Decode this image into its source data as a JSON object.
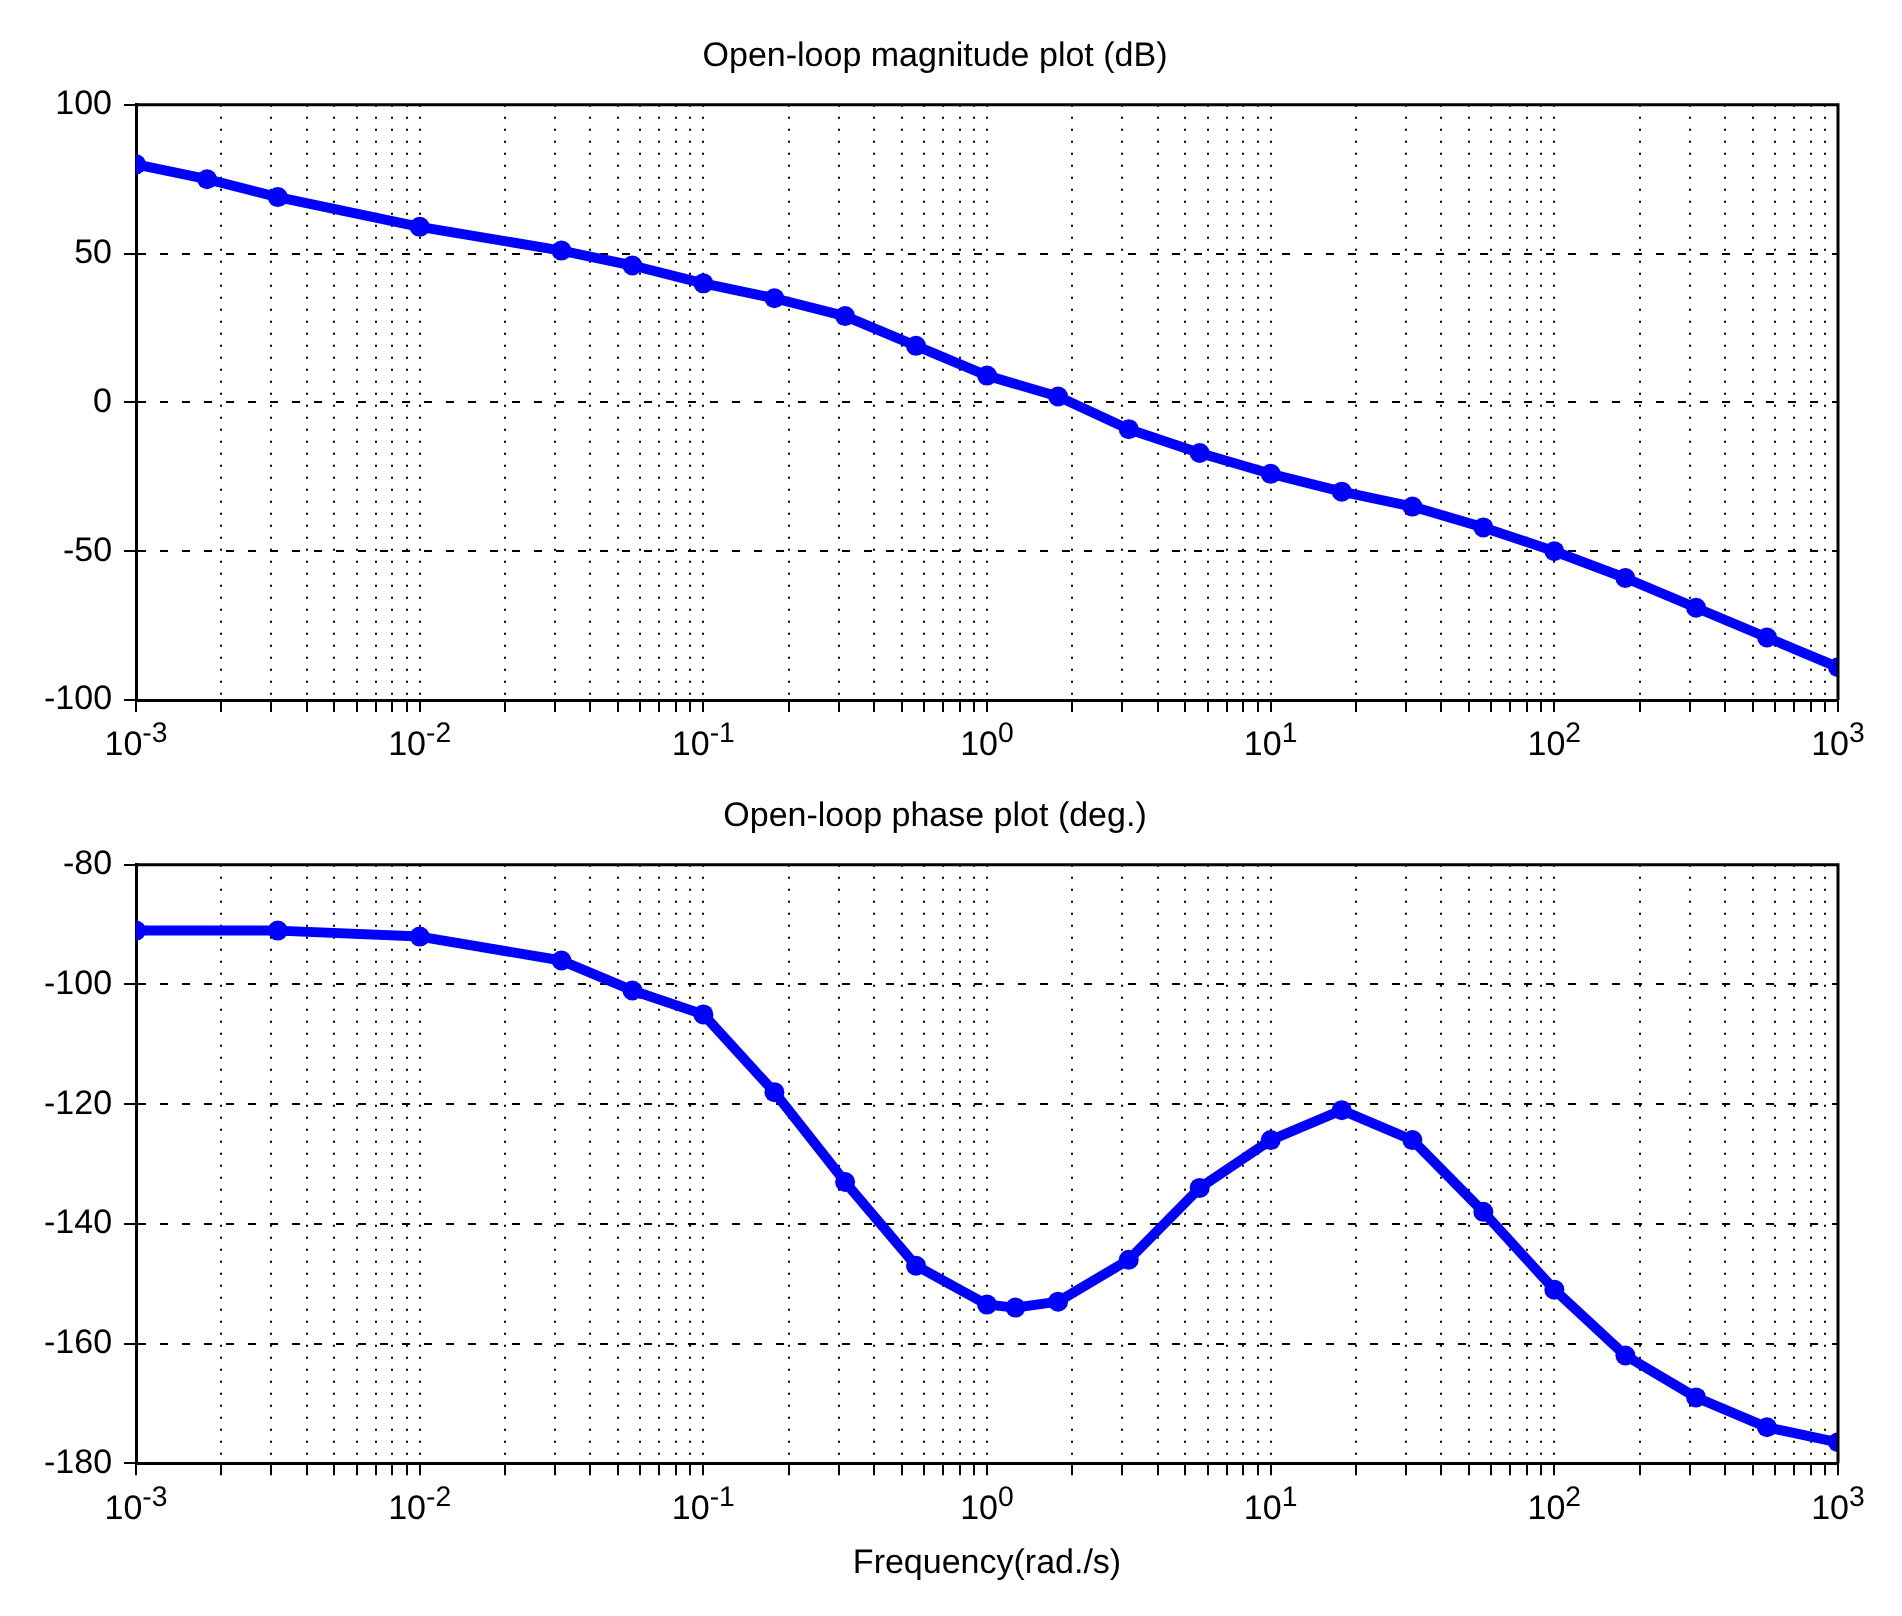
{
  "chart_data": [
    {
      "type": "line",
      "title": "Open-loop magnitude plot (dB)",
      "color": "#0000ff",
      "marker": "circle",
      "grid": true,
      "log": "x",
      "x": [
        0.001,
        0.00178,
        0.00316,
        0.01,
        0.0316,
        0.0562,
        0.1,
        0.178,
        0.316,
        0.562,
        1,
        1.78,
        3.16,
        5.62,
        10,
        17.8,
        31.6,
        56.2,
        100,
        178,
        316,
        562,
        1000
      ],
      "values": [
        80,
        75,
        69,
        59,
        51,
        46,
        40,
        35,
        29,
        19,
        9,
        2,
        -9,
        -17,
        -24,
        -30,
        -35,
        -42,
        -50,
        -59,
        -69,
        -79,
        -89
      ],
      "xlim": [
        0.001,
        1000
      ],
      "ylim": [
        -100,
        100
      ],
      "yticks": [
        -100,
        -50,
        0,
        50,
        100
      ],
      "xticks": [
        {
          "value": 0.001,
          "label": "10$^{-3}$"
        },
        {
          "value": 0.002,
          "label": null
        },
        {
          "value": 0.003,
          "label": null
        },
        {
          "value": 0.004,
          "label": null
        },
        {
          "value": 0.005,
          "label": null
        },
        {
          "value": 0.006,
          "label": null
        },
        {
          "value": 0.007,
          "label": null
        },
        {
          "value": 0.008,
          "label": null
        },
        {
          "value": 0.009,
          "label": null
        },
        {
          "value": 0.01,
          "label": "10$^{-2}$"
        },
        {
          "value": 0.02,
          "label": null
        },
        {
          "value": 0.03,
          "label": null
        },
        {
          "value": 0.04,
          "label": null
        },
        {
          "value": 0.05,
          "label": null
        },
        {
          "value": 0.06,
          "label": null
        },
        {
          "value": 0.07,
          "label": null
        },
        {
          "value": 0.08,
          "label": null
        },
        {
          "value": 0.09,
          "label": null
        },
        {
          "value": 0.1,
          "label": "10$^{-1}$"
        },
        {
          "value": 0.2,
          "label": null
        },
        {
          "value": 0.3,
          "label": null
        },
        {
          "value": 0.4,
          "label": null
        },
        {
          "value": 0.5,
          "label": null
        },
        {
          "value": 0.6,
          "label": null
        },
        {
          "value": 0.7,
          "label": null
        },
        {
          "value": 0.8,
          "label": null
        },
        {
          "value": 0.9,
          "label": null
        },
        {
          "value": 1,
          "label": "10$^{0}$"
        },
        {
          "value": 2,
          "label": null
        },
        {
          "value": 3,
          "label": null
        },
        {
          "value": 4,
          "label": null
        },
        {
          "value": 5,
          "label": null
        },
        {
          "value": 6,
          "label": null
        },
        {
          "value": 7,
          "label": null
        },
        {
          "value": 8,
          "label": null
        },
        {
          "value": 9,
          "label": null
        },
        {
          "value": 10,
          "label": "10$^{1}$"
        },
        {
          "value": 20,
          "label": null
        },
        {
          "value": 30,
          "label": null
        },
        {
          "value": 40,
          "label": null
        },
        {
          "value": 50,
          "label": null
        },
        {
          "value": 60,
          "label": null
        },
        {
          "value": 70,
          "label": null
        },
        {
          "value": 80,
          "label": null
        },
        {
          "value": 90,
          "label": null
        },
        {
          "value": 100,
          "label": "10$^{2}$"
        },
        {
          "value": 200,
          "label": null
        },
        {
          "value": 300,
          "label": null
        },
        {
          "value": 400,
          "label": null
        },
        {
          "value": 500,
          "label": null
        },
        {
          "value": 600,
          "label": null
        },
        {
          "value": 700,
          "label": null
        },
        {
          "value": 800,
          "label": null
        },
        {
          "value": 900,
          "label": null
        },
        {
          "value": 1000,
          "label": "10$^{3}$"
        }
      ]
    },
    {
      "type": "line",
      "title": "Open-loop phase plot (deg.)",
      "xlabel": "Frequency(rad./s)",
      "color": "#0000ff",
      "marker": "circle",
      "grid": true,
      "log": "x",
      "x": [
        0.001,
        0.00316,
        0.01,
        0.0316,
        0.0562,
        0.1,
        0.178,
        0.316,
        0.562,
        1,
        1.26,
        1.78,
        3.16,
        5.62,
        10,
        17.8,
        31.6,
        56.2,
        100,
        178,
        316,
        562,
        1000
      ],
      "values": [
        -91,
        -91,
        -92,
        -96,
        -101,
        -105,
        -118,
        -133,
        -147,
        -153.5,
        -154,
        -153,
        -146,
        -134,
        -126,
        -121,
        -126,
        -138,
        -151,
        -162,
        -169,
        -174,
        -176.5
      ],
      "xlim": [
        0.001,
        1000
      ],
      "ylim": [
        -180,
        -80
      ],
      "yticks": [
        -180,
        -160,
        -140,
        -120,
        -100,
        -80
      ],
      "xticks": [
        {
          "value": 0.001,
          "label": "10$^{-3}$"
        },
        {
          "value": 0.002,
          "label": null
        },
        {
          "value": 0.003,
          "label": null
        },
        {
          "value": 0.004,
          "label": null
        },
        {
          "value": 0.005,
          "label": null
        },
        {
          "value": 0.006,
          "label": null
        },
        {
          "value": 0.007,
          "label": null
        },
        {
          "value": 0.008,
          "label": null
        },
        {
          "value": 0.009,
          "label": null
        },
        {
          "value": 0.01,
          "label": "10$^{-2}$"
        },
        {
          "value": 0.02,
          "label": null
        },
        {
          "value": 0.03,
          "label": null
        },
        {
          "value": 0.04,
          "label": null
        },
        {
          "value": 0.05,
          "label": null
        },
        {
          "value": 0.06,
          "label": null
        },
        {
          "value": 0.07,
          "label": null
        },
        {
          "value": 0.08,
          "label": null
        },
        {
          "value": 0.09,
          "label": null
        },
        {
          "value": 0.1,
          "label": "10$^{-1}$"
        },
        {
          "value": 0.2,
          "label": null
        },
        {
          "value": 0.3,
          "label": null
        },
        {
          "value": 0.4,
          "label": null
        },
        {
          "value": 0.5,
          "label": null
        },
        {
          "value": 0.6,
          "label": null
        },
        {
          "value": 0.7,
          "label": null
        },
        {
          "value": 0.8,
          "label": null
        },
        {
          "value": 0.9,
          "label": null
        },
        {
          "value": 1,
          "label": "10$^{0}$"
        },
        {
          "value": 2,
          "label": null
        },
        {
          "value": 3,
          "label": null
        },
        {
          "value": 4,
          "label": null
        },
        {
          "value": 5,
          "label": null
        },
        {
          "value": 6,
          "label": null
        },
        {
          "value": 7,
          "label": null
        },
        {
          "value": 8,
          "label": null
        },
        {
          "value": 9,
          "label": null
        },
        {
          "value": 10,
          "label": "10$^{1}$"
        },
        {
          "value": 20,
          "label": null
        },
        {
          "value": 30,
          "label": null
        },
        {
          "value": 40,
          "label": null
        },
        {
          "value": 50,
          "label": null
        },
        {
          "value": 60,
          "label": null
        },
        {
          "value": 70,
          "label": null
        },
        {
          "value": 80,
          "label": null
        },
        {
          "value": 90,
          "label": null
        },
        {
          "value": 100,
          "label": "10$^{2}$"
        },
        {
          "value": 200,
          "label": null
        },
        {
          "value": 300,
          "label": null
        },
        {
          "value": 400,
          "label": null
        },
        {
          "value": 500,
          "label": null
        },
        {
          "value": 600,
          "label": null
        },
        {
          "value": 700,
          "label": null
        },
        {
          "value": 800,
          "label": null
        },
        {
          "value": 900,
          "label": null
        },
        {
          "value": 1000,
          "label": "10$^{3}$"
        }
      ]
    }
  ]
}
